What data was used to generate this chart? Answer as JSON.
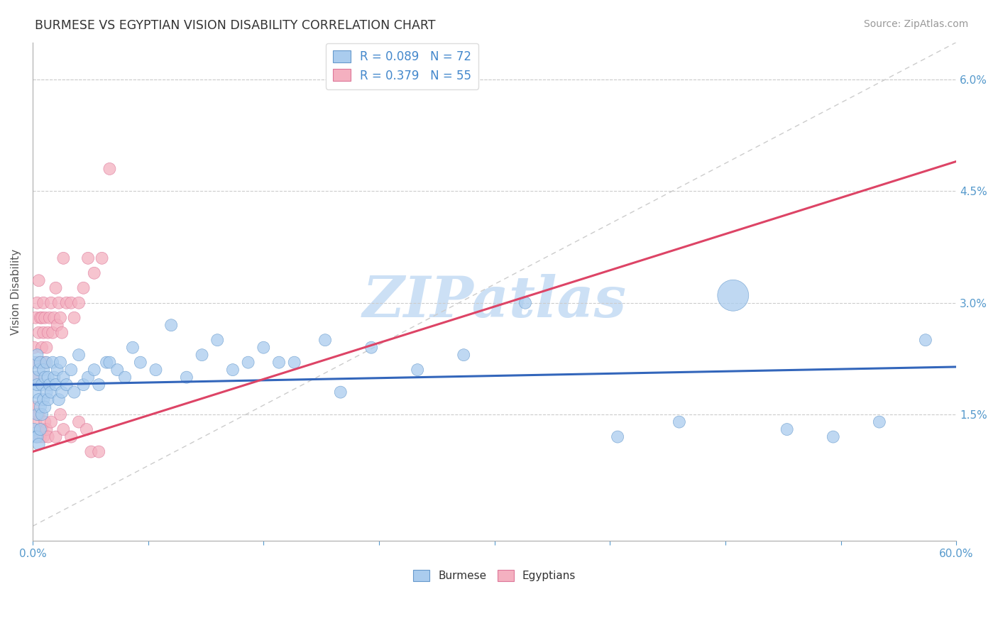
{
  "title": "BURMESE VS EGYPTIAN VISION DISABILITY CORRELATION CHART",
  "source_text": "Source: ZipAtlas.com",
  "ylabel": "Vision Disability",
  "yticks": [
    0.0,
    0.015,
    0.03,
    0.045,
    0.06
  ],
  "ytick_labels": [
    "",
    "1.5%",
    "3.0%",
    "4.5%",
    "6.0%"
  ],
  "xlim": [
    0.0,
    0.6
  ],
  "ylim": [
    -0.002,
    0.065
  ],
  "burmese_R": 0.089,
  "burmese_N": 72,
  "egyptian_R": 0.379,
  "egyptian_N": 55,
  "burmese_color": "#aaccee",
  "egyptian_color": "#f4b0c0",
  "burmese_edge_color": "#6699cc",
  "egyptian_edge_color": "#dd7799",
  "burmese_line_color": "#3366bb",
  "egyptian_line_color": "#dd4466",
  "ref_line_color": "#cccccc",
  "title_color": "#333333",
  "tick_color": "#5599cc",
  "legend_r_color": "#4488cc",
  "watermark_color": "#ddeeff",
  "burmese_line_intercept": 0.019,
  "burmese_line_slope": 0.004,
  "egyptian_line_intercept": 0.01,
  "egyptian_line_slope": 0.065,
  "burmese_x": [
    0.001,
    0.002,
    0.002,
    0.003,
    0.003,
    0.003,
    0.004,
    0.004,
    0.005,
    0.005,
    0.006,
    0.006,
    0.007,
    0.007,
    0.008,
    0.008,
    0.009,
    0.009,
    0.01,
    0.01,
    0.011,
    0.012,
    0.013,
    0.014,
    0.015,
    0.016,
    0.017,
    0.018,
    0.019,
    0.02,
    0.022,
    0.025,
    0.027,
    0.03,
    0.033,
    0.036,
    0.04,
    0.043,
    0.048,
    0.05,
    0.055,
    0.06,
    0.065,
    0.07,
    0.08,
    0.09,
    0.1,
    0.11,
    0.12,
    0.13,
    0.14,
    0.15,
    0.16,
    0.17,
    0.19,
    0.2,
    0.22,
    0.25,
    0.28,
    0.32,
    0.38,
    0.42,
    0.49,
    0.52,
    0.55,
    0.58,
    0.001,
    0.002,
    0.003,
    0.004,
    0.005,
    0.455
  ],
  "burmese_y": [
    0.022,
    0.02,
    0.018,
    0.023,
    0.019,
    0.015,
    0.021,
    0.017,
    0.022,
    0.016,
    0.019,
    0.015,
    0.021,
    0.017,
    0.02,
    0.016,
    0.022,
    0.018,
    0.02,
    0.017,
    0.019,
    0.018,
    0.022,
    0.02,
    0.019,
    0.021,
    0.017,
    0.022,
    0.018,
    0.02,
    0.019,
    0.021,
    0.018,
    0.023,
    0.019,
    0.02,
    0.021,
    0.019,
    0.022,
    0.022,
    0.021,
    0.02,
    0.024,
    0.022,
    0.021,
    0.027,
    0.02,
    0.023,
    0.025,
    0.021,
    0.022,
    0.024,
    0.022,
    0.022,
    0.025,
    0.018,
    0.024,
    0.021,
    0.023,
    0.03,
    0.012,
    0.014,
    0.013,
    0.012,
    0.014,
    0.025,
    0.013,
    0.012,
    0.012,
    0.011,
    0.013,
    0.031
  ],
  "burmese_size": [
    30,
    30,
    30,
    30,
    30,
    30,
    30,
    30,
    30,
    30,
    30,
    30,
    30,
    30,
    30,
    30,
    30,
    30,
    30,
    30,
    30,
    30,
    30,
    30,
    30,
    30,
    30,
    30,
    30,
    30,
    30,
    30,
    30,
    30,
    30,
    30,
    30,
    30,
    30,
    30,
    30,
    30,
    30,
    30,
    30,
    30,
    30,
    30,
    30,
    30,
    30,
    30,
    30,
    30,
    30,
    30,
    30,
    30,
    30,
    30,
    30,
    30,
    30,
    30,
    30,
    30,
    30,
    30,
    30,
    30,
    30,
    200
  ],
  "egyptian_x": [
    0.001,
    0.002,
    0.002,
    0.003,
    0.003,
    0.004,
    0.004,
    0.005,
    0.005,
    0.006,
    0.006,
    0.007,
    0.007,
    0.008,
    0.008,
    0.009,
    0.01,
    0.011,
    0.012,
    0.013,
    0.014,
    0.015,
    0.016,
    0.017,
    0.018,
    0.019,
    0.02,
    0.022,
    0.025,
    0.027,
    0.03,
    0.033,
    0.036,
    0.04,
    0.045,
    0.05,
    0.001,
    0.002,
    0.003,
    0.004,
    0.005,
    0.006,
    0.007,
    0.008,
    0.009,
    0.01,
    0.012,
    0.015,
    0.018,
    0.02,
    0.025,
    0.03,
    0.035,
    0.038,
    0.043
  ],
  "egyptian_y": [
    0.024,
    0.02,
    0.028,
    0.022,
    0.03,
    0.026,
    0.033,
    0.028,
    0.022,
    0.024,
    0.028,
    0.026,
    0.03,
    0.022,
    0.028,
    0.024,
    0.026,
    0.028,
    0.03,
    0.026,
    0.028,
    0.032,
    0.027,
    0.03,
    0.028,
    0.026,
    0.036,
    0.03,
    0.03,
    0.028,
    0.03,
    0.032,
    0.036,
    0.034,
    0.036,
    0.048,
    0.016,
    0.014,
    0.012,
    0.015,
    0.012,
    0.013,
    0.012,
    0.014,
    0.013,
    0.012,
    0.014,
    0.012,
    0.015,
    0.013,
    0.012,
    0.014,
    0.013,
    0.01,
    0.01
  ],
  "egyptian_size": [
    30,
    30,
    30,
    30,
    30,
    30,
    30,
    30,
    30,
    30,
    30,
    30,
    30,
    30,
    30,
    30,
    30,
    30,
    30,
    30,
    30,
    30,
    30,
    30,
    30,
    30,
    30,
    30,
    30,
    30,
    30,
    30,
    30,
    30,
    30,
    30,
    30,
    30,
    30,
    30,
    30,
    30,
    30,
    30,
    30,
    30,
    30,
    30,
    30,
    30,
    30,
    30,
    30,
    30,
    30
  ]
}
